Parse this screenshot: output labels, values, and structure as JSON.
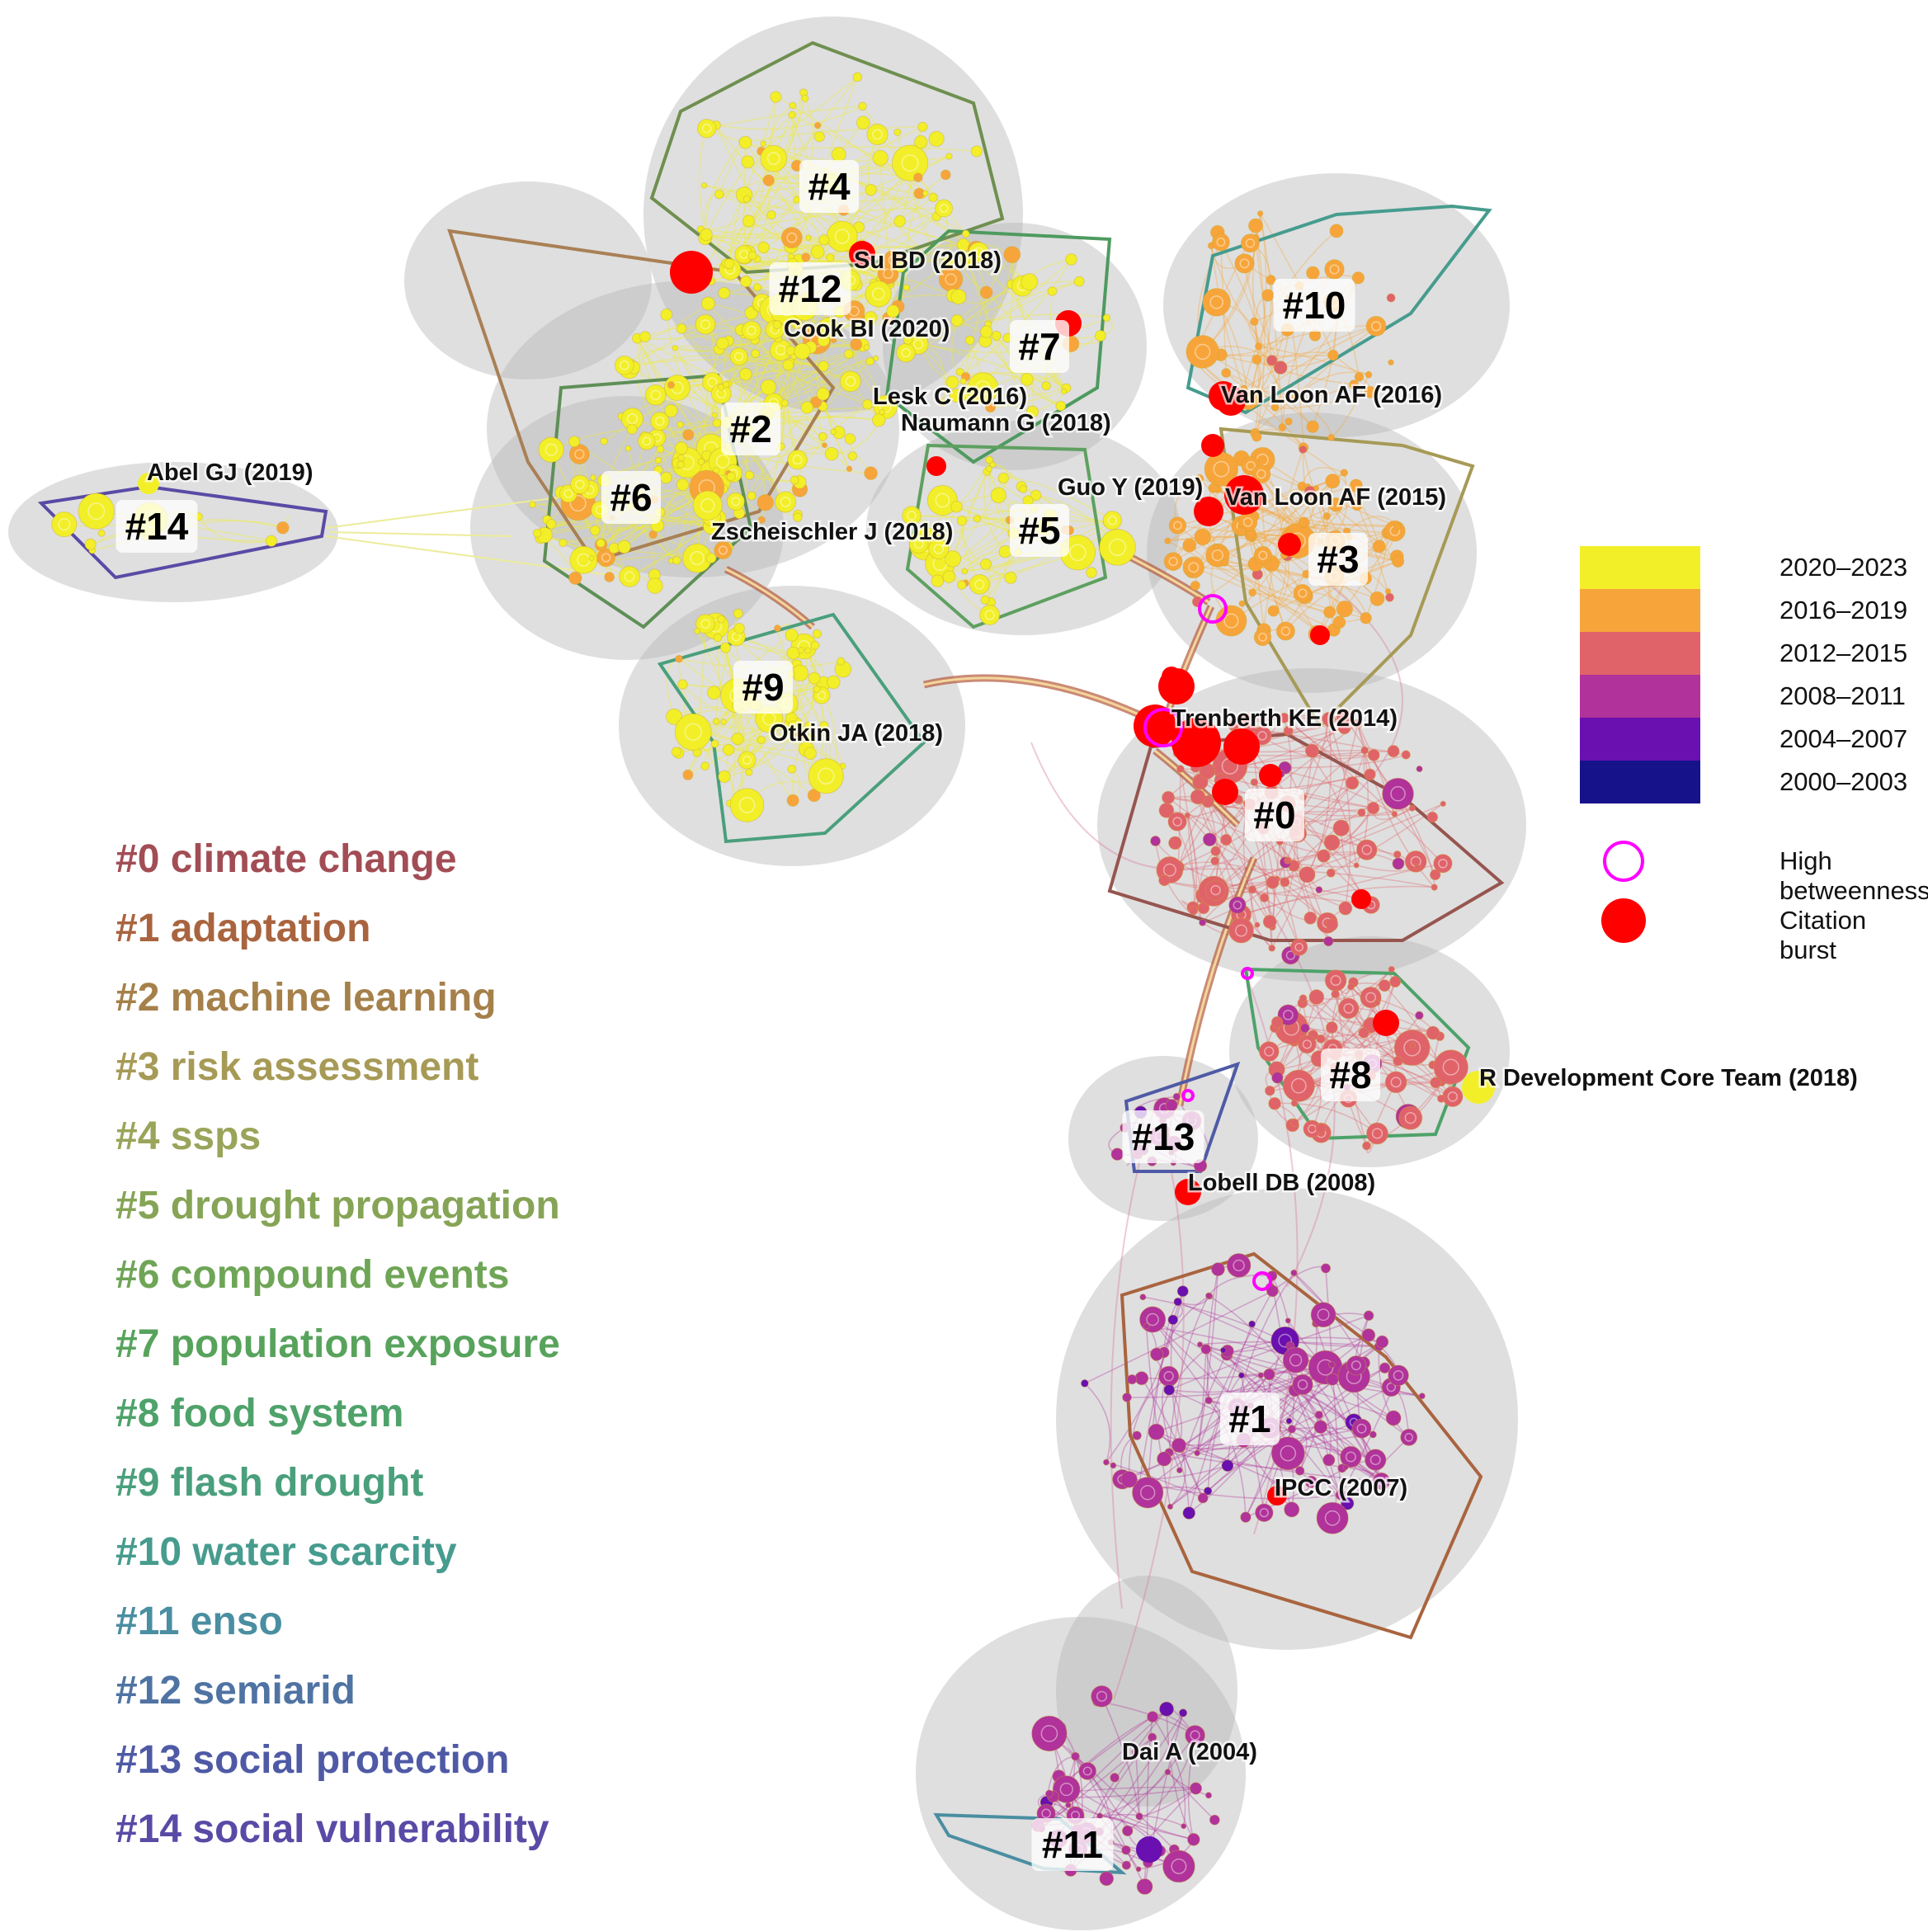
{
  "figure": {
    "clusters": [
      {
        "id": "c0",
        "tag": "#0",
        "label": "#0 climate change",
        "color": "#a24d55"
      },
      {
        "id": "c1",
        "tag": "#1",
        "label": "#1 adaptation",
        "color": "#a9643f"
      },
      {
        "id": "c2",
        "tag": "#2",
        "label": "#2 machine learning",
        "color": "#a5804a"
      },
      {
        "id": "c3",
        "tag": "#3",
        "label": "#3 risk assessment",
        "color": "#a69a56"
      },
      {
        "id": "c4",
        "tag": "#4",
        "label": "#4 ssps",
        "color": "#9aa45a"
      },
      {
        "id": "c5",
        "tag": "#5",
        "label": "#5 drought propagation",
        "color": "#86a456"
      },
      {
        "id": "c6",
        "tag": "#6",
        "label": "#6 compound events",
        "color": "#6ea556"
      },
      {
        "id": "c7",
        "tag": "#7",
        "label": "#7 population exposure",
        "color": "#58a35c"
      },
      {
        "id": "c8",
        "tag": "#8",
        "label": "#8 food system",
        "color": "#4ea26a"
      },
      {
        "id": "c9",
        "tag": "#9",
        "label": "#9 flash drought",
        "color": "#4a9f7c"
      },
      {
        "id": "c10",
        "tag": "#10",
        "label": "#10 water scarcity",
        "color": "#469c8e"
      },
      {
        "id": "c11",
        "tag": "#11",
        "label": "#11 enso",
        "color": "#4a8ea1"
      },
      {
        "id": "c12",
        "tag": "#12",
        "label": "#12 semiarid",
        "color": "#4f73a3"
      },
      {
        "id": "c13",
        "tag": "#13",
        "label": "#13 social protection",
        "color": "#4f5aa6"
      },
      {
        "id": "c14",
        "tag": "#14",
        "label": "#14 social vulnerability",
        "color": "#5a4aa6"
      }
    ],
    "references": [
      {
        "id": "r_subd",
        "label": "Su BD (2018)"
      },
      {
        "id": "r_cook",
        "label": "Cook BI (2020)"
      },
      {
        "id": "r_lesk",
        "label": "Lesk C (2016)"
      },
      {
        "id": "r_naumann",
        "label": "Naumann G (2018)"
      },
      {
        "id": "r_vanloon16",
        "label": "Van Loon AF (2016)"
      },
      {
        "id": "r_guo",
        "label": "Guo Y (2019)"
      },
      {
        "id": "r_vanloon15",
        "label": "Van Loon AF (2015)"
      },
      {
        "id": "r_abel",
        "label": "Abel GJ (2019)"
      },
      {
        "id": "r_zsch",
        "label": "Zscheischler J (2018)"
      },
      {
        "id": "r_otkin",
        "label": "Otkin JA (2018)"
      },
      {
        "id": "r_trenberth",
        "label": "Trenberth KE (2014)"
      },
      {
        "id": "r_rdev",
        "label": "R Development Core Team (2018)"
      },
      {
        "id": "r_lobell",
        "label": "Lobell DB (2008)"
      },
      {
        "id": "r_ipcc",
        "label": "IPCC (2007)"
      },
      {
        "id": "r_dai",
        "label": "Dai A (2004)"
      }
    ]
  },
  "legend": {
    "years": [
      {
        "label": "2020–2023",
        "color": "#f2ef28"
      },
      {
        "label": "2016–2019",
        "color": "#f7a53a"
      },
      {
        "label": "2012–2015",
        "color": "#e0636a"
      },
      {
        "label": "2008–2011",
        "color": "#b0329a"
      },
      {
        "label": "2004–2007",
        "color": "#6a0fb0"
      },
      {
        "label": "2000–2003",
        "color": "#16128a"
      }
    ],
    "high_betweenness": "High betweenness",
    "citation_burst": "Citation burst",
    "betweenness_color": "#ff00ff",
    "burst_color": "#ff0000"
  }
}
